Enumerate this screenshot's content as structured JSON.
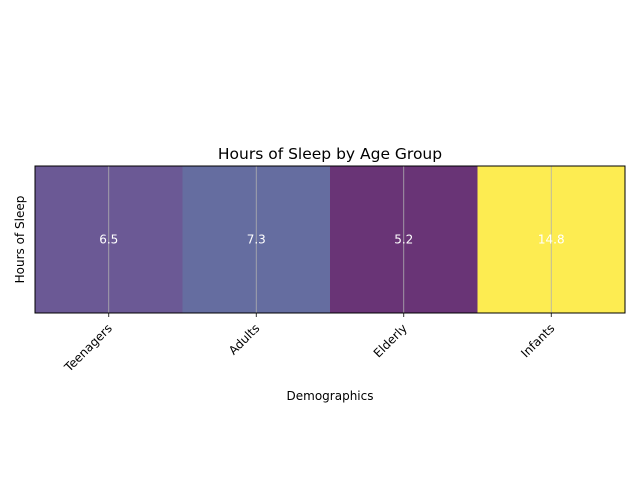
{
  "chart_data": {
    "type": "heatmap",
    "title": "Hours of Sleep by Age Group",
    "xlabel": "Demographics",
    "ylabel": "Hours of Sleep",
    "categories": [
      "Teenagers",
      "Adults",
      "Elderly",
      "Infants"
    ],
    "values": [
      6.5,
      7.3,
      5.2,
      14.8
    ],
    "value_labels": [
      "6.5",
      "7.3",
      "5.2",
      "14.8"
    ],
    "colormap": "viridis",
    "alpha": 0.8,
    "grid": true,
    "y_ticks_shown": false,
    "x_tick_rotation": 45
  }
}
